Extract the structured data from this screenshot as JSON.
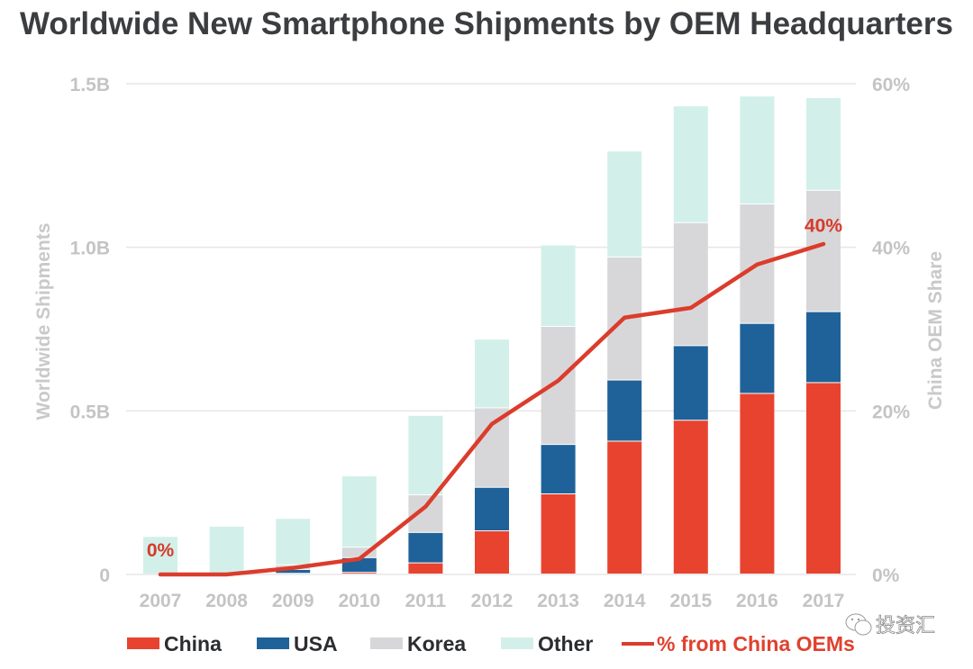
{
  "chart_data": {
    "type": "bar",
    "stacked": true,
    "title": "Worldwide New Smartphone Shipments by OEM Headquarters",
    "xlabel": "",
    "ylabel": "Worldwide Shipments",
    "y2label": "China OEM Share",
    "categories": [
      "2007",
      "2008",
      "2009",
      "2010",
      "2011",
      "2012",
      "2013",
      "2014",
      "2015",
      "2016",
      "2017"
    ],
    "ylim": [
      0,
      1.5
    ],
    "y_unit": "B",
    "y_ticks": [
      {
        "value": 0,
        "label": "0"
      },
      {
        "value": 0.5,
        "label": "0.5B"
      },
      {
        "value": 1.0,
        "label": "1.0B"
      },
      {
        "value": 1.5,
        "label": "1.5B"
      }
    ],
    "y2lim": [
      0,
      60
    ],
    "y2_ticks": [
      {
        "value": 0,
        "label": "0%"
      },
      {
        "value": 20,
        "label": "20%"
      },
      {
        "value": 40,
        "label": "40%"
      },
      {
        "value": 60,
        "label": "60%"
      }
    ],
    "grid": true,
    "series": [
      {
        "name": "China",
        "color": "#e8432f",
        "values": [
          0,
          0,
          0.002,
          0.005,
          0.034,
          0.132,
          0.245,
          0.406,
          0.47,
          0.552,
          0.585
        ]
      },
      {
        "name": "USA",
        "color": "#1f6299",
        "values": [
          0,
          0,
          0.012,
          0.045,
          0.093,
          0.133,
          0.151,
          0.187,
          0.228,
          0.214,
          0.217
        ]
      },
      {
        "name": "Korea",
        "color": "#d7d7d9",
        "values": [
          0,
          0,
          0.014,
          0.032,
          0.115,
          0.243,
          0.361,
          0.376,
          0.376,
          0.365,
          0.371
        ]
      },
      {
        "name": "Other",
        "color": "#d2f0e9",
        "values": [
          0.115,
          0.146,
          0.142,
          0.218,
          0.243,
          0.21,
          0.249,
          0.324,
          0.357,
          0.33,
          0.283
        ]
      }
    ],
    "line_series": {
      "name": "% from China OEMs",
      "color": "#dc3c2c",
      "axis": "right",
      "values": [
        0,
        0,
        0.8,
        1.9,
        8.3,
        18.4,
        23.7,
        31.4,
        32.6,
        37.9,
        40.4
      ]
    },
    "annotations": [
      {
        "text": "0%",
        "category": "2007",
        "value": 0
      },
      {
        "text": "40%",
        "category": "2017",
        "value": 40
      }
    ],
    "legend": {
      "placement": "bottom",
      "items": [
        {
          "label": "China",
          "kind": "bar",
          "color": "#e8432f"
        },
        {
          "label": "USA",
          "kind": "bar",
          "color": "#1f6299"
        },
        {
          "label": "Korea",
          "kind": "bar",
          "color": "#d7d7d9"
        },
        {
          "label": "Other",
          "kind": "bar",
          "color": "#d2f0e9"
        },
        {
          "label": "% from China OEMs",
          "kind": "line",
          "color": "#dc3c2c"
        }
      ]
    }
  },
  "watermark": {
    "text": "投资汇",
    "icon": "wechat-icon"
  }
}
